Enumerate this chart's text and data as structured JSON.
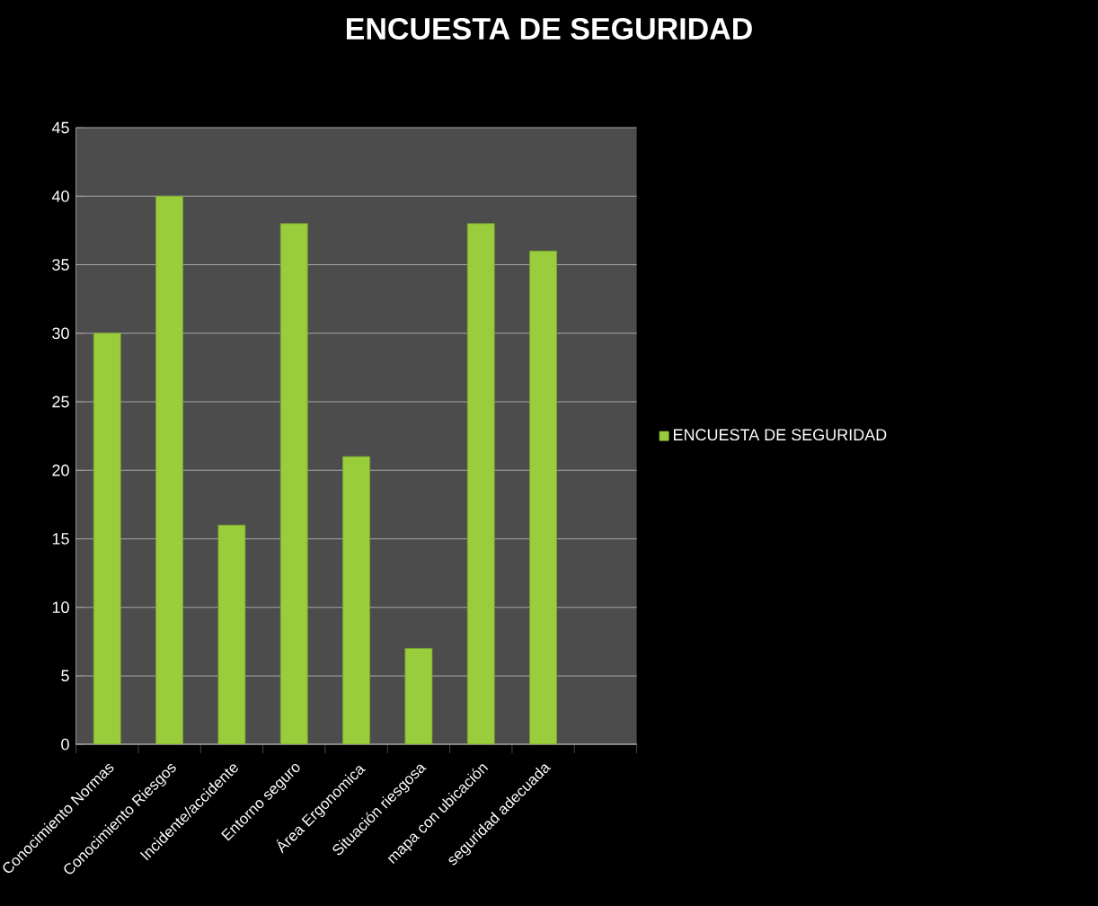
{
  "chart_data": {
    "type": "bar",
    "title": "ENCUESTA DE SEGURIDAD",
    "categories": [
      "Conocimiento Normas",
      "Conocimiento Riesgos",
      "Incidente/accidente",
      "Entorno seguro",
      "Área Ergonomica",
      "Situación riesgosa",
      "mapa con ubicación",
      "seguridad adecuada",
      null
    ],
    "series": [
      {
        "name": "ENCUESTA DE SEGURIDAD",
        "color": "#9acd3c",
        "values": [
          30,
          40,
          16,
          38,
          21,
          7,
          38,
          36,
          null
        ]
      }
    ],
    "ylim": [
      0,
      45
    ],
    "yticks": [
      0,
      5,
      10,
      15,
      20,
      25,
      30,
      35,
      40,
      45
    ],
    "grid": "y",
    "legend": "right"
  }
}
